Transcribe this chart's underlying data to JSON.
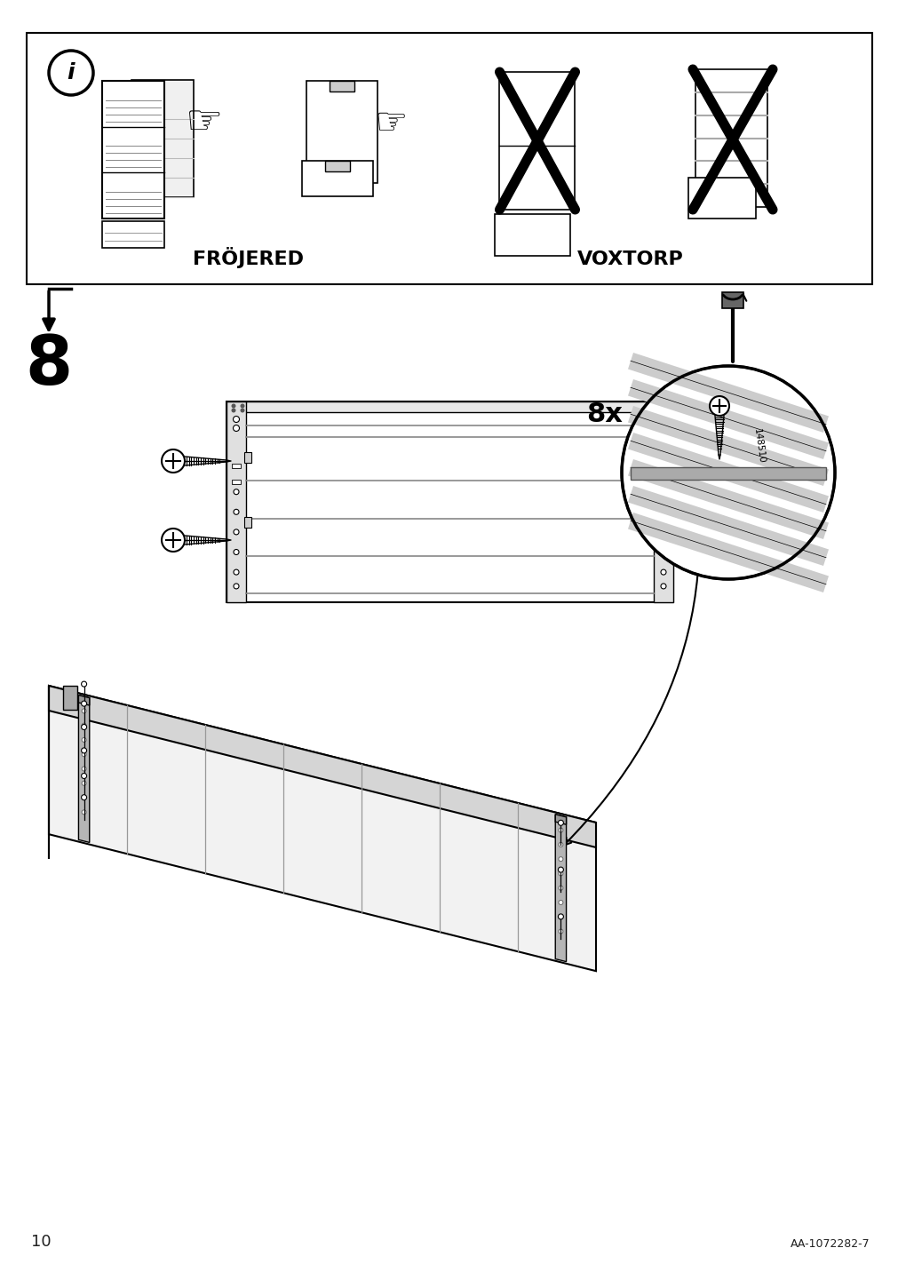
{
  "page_number": "10",
  "doc_number": "AA-1072282-7",
  "step_number": "8",
  "bg_color": "#ffffff",
  "frojered_label": "FRÖJERED",
  "voxtorp_label": "VOXTORP",
  "quantity_label": "8x",
  "part_number": "148510"
}
